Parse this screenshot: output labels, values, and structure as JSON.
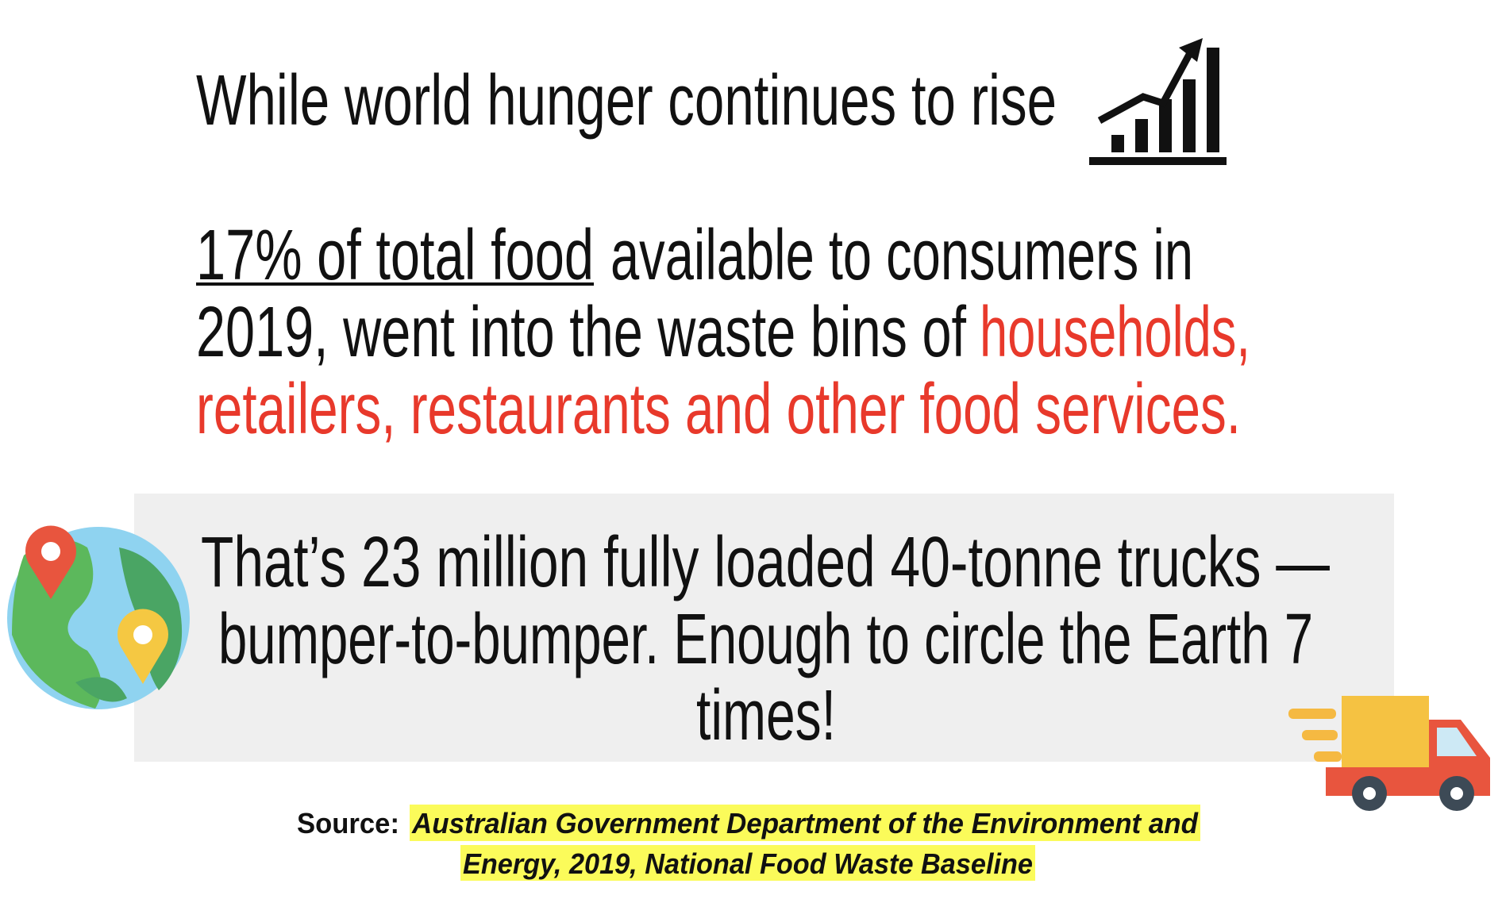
{
  "heading": "While world hunger continues to rise",
  "statement": {
    "line1_underlined": "17% of total food",
    "line1_rest": "available to consumers in",
    "line2_plain": "2019, went into the waste bins of",
    "line2_red": "households,",
    "line3_red": "retailers, restaurants and other food services."
  },
  "callout": {
    "lines": [
      "That’s 23 million fully loaded 40-tonne trucks —",
      "bumper-to-bumper. Enough to circle the Earth 7",
      "times!"
    ]
  },
  "source": {
    "label": "Source:",
    "lines": [
      "Australian Government Department of the Environment and",
      "Energy, 2019, National Food Waste Baseline"
    ]
  }
}
